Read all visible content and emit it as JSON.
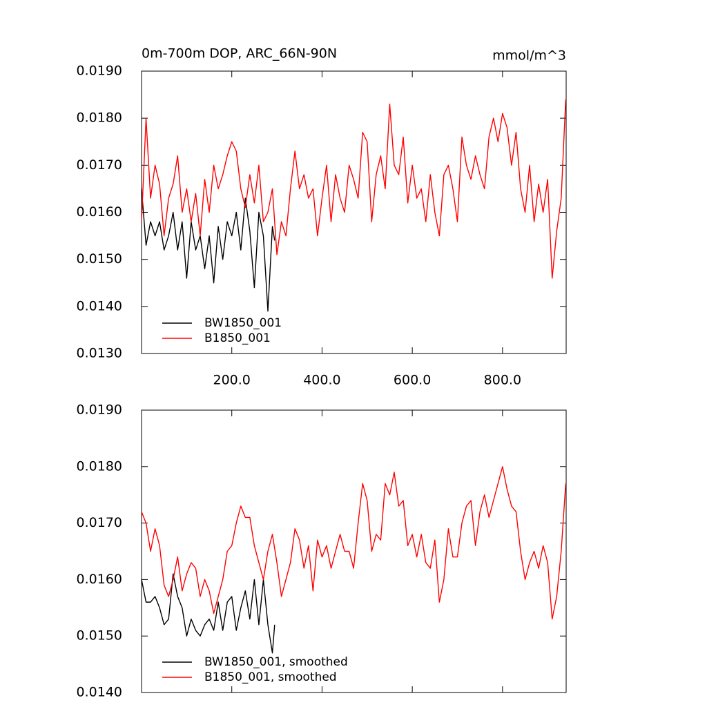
{
  "chart_data": [
    {
      "type": "line",
      "title": "0m-700m DOP, ARC_66N-90N",
      "units": "mmol/m^3",
      "xlim": [
        0,
        941
      ],
      "xticks": [
        {
          "value": 200,
          "label": "200.0"
        },
        {
          "value": 400,
          "label": "400.0"
        },
        {
          "value": 600,
          "label": "600.0"
        },
        {
          "value": 800,
          "label": "800.0"
        }
      ],
      "ylim": [
        0.013,
        0.019
      ],
      "yticks": [
        {
          "value": 0.013,
          "label": "0.0130"
        },
        {
          "value": 0.014,
          "label": "0.0140"
        },
        {
          "value": 0.015,
          "label": "0.0150"
        },
        {
          "value": 0.016,
          "label": "0.0160"
        },
        {
          "value": 0.017,
          "label": "0.0170"
        },
        {
          "value": 0.018,
          "label": "0.0180"
        },
        {
          "value": 0.019,
          "label": "0.0190"
        }
      ],
      "legend": "lower left",
      "series": [
        {
          "name": "BW1850_001",
          "color": "#000000",
          "x": [
            0,
            10,
            20,
            30,
            40,
            50,
            60,
            70,
            80,
            90,
            100,
            110,
            120,
            130,
            140,
            150,
            160,
            170,
            180,
            190,
            200,
            210,
            220,
            230,
            240,
            250,
            260,
            270,
            280,
            290,
            295
          ],
          "values": [
            0.0165,
            0.0153,
            0.0158,
            0.0155,
            0.0158,
            0.0152,
            0.0155,
            0.016,
            0.0152,
            0.0158,
            0.0146,
            0.0158,
            0.0152,
            0.0155,
            0.0148,
            0.0155,
            0.0145,
            0.0157,
            0.015,
            0.0158,
            0.0155,
            0.016,
            0.0152,
            0.0163,
            0.0156,
            0.0144,
            0.016,
            0.0155,
            0.0139,
            0.0157,
            0.0154
          ]
        },
        {
          "name": "B1850_001",
          "color": "#ff0000",
          "x": [
            0,
            10,
            20,
            30,
            40,
            50,
            60,
            70,
            80,
            90,
            100,
            110,
            120,
            130,
            140,
            150,
            160,
            170,
            180,
            190,
            200,
            210,
            220,
            230,
            240,
            250,
            260,
            270,
            280,
            290,
            300,
            310,
            320,
            330,
            340,
            350,
            360,
            370,
            380,
            390,
            400,
            410,
            420,
            430,
            440,
            450,
            460,
            470,
            480,
            490,
            500,
            510,
            520,
            530,
            540,
            550,
            560,
            570,
            580,
            590,
            600,
            610,
            620,
            630,
            640,
            650,
            660,
            670,
            680,
            690,
            700,
            710,
            720,
            730,
            740,
            750,
            760,
            770,
            780,
            790,
            800,
            810,
            820,
            830,
            840,
            850,
            860,
            870,
            880,
            890,
            900,
            910,
            920,
            930,
            940
          ],
          "values": [
            0.0158,
            0.018,
            0.0163,
            0.017,
            0.0166,
            0.0155,
            0.0163,
            0.0166,
            0.0172,
            0.016,
            0.0165,
            0.0158,
            0.0164,
            0.0155,
            0.0167,
            0.016,
            0.017,
            0.0165,
            0.0168,
            0.0172,
            0.0175,
            0.0173,
            0.0165,
            0.0161,
            0.0168,
            0.0162,
            0.017,
            0.0158,
            0.016,
            0.0165,
            0.0151,
            0.0158,
            0.0155,
            0.0165,
            0.0173,
            0.0165,
            0.0168,
            0.0163,
            0.0165,
            0.0155,
            0.0163,
            0.017,
            0.0158,
            0.0168,
            0.0163,
            0.016,
            0.017,
            0.0167,
            0.0163,
            0.0177,
            0.0175,
            0.0158,
            0.0168,
            0.0172,
            0.0165,
            0.0183,
            0.017,
            0.0168,
            0.0176,
            0.0162,
            0.017,
            0.0163,
            0.0165,
            0.0158,
            0.0168,
            0.016,
            0.0155,
            0.0168,
            0.017,
            0.0165,
            0.0158,
            0.0176,
            0.017,
            0.0167,
            0.0172,
            0.0168,
            0.0165,
            0.0176,
            0.018,
            0.0175,
            0.0181,
            0.0178,
            0.017,
            0.0177,
            0.0165,
            0.016,
            0.017,
            0.0158,
            0.0166,
            0.016,
            0.0167,
            0.0146,
            0.0156,
            0.0163,
            0.0184
          ]
        }
      ]
    },
    {
      "type": "line",
      "xlim": [
        0,
        941
      ],
      "xticks": [
        200,
        400,
        600,
        800
      ],
      "ylim": [
        0.014,
        0.019
      ],
      "yticks": [
        {
          "value": 0.014,
          "label": "0.0140"
        },
        {
          "value": 0.015,
          "label": "0.0150"
        },
        {
          "value": 0.016,
          "label": "0.0160"
        },
        {
          "value": 0.017,
          "label": "0.0170"
        },
        {
          "value": 0.018,
          "label": "0.0180"
        },
        {
          "value": 0.019,
          "label": "0.0190"
        }
      ],
      "legend": "lower left",
      "series": [
        {
          "name": "BW1850_001, smoothed",
          "color": "#000000",
          "x": [
            0,
            10,
            20,
            30,
            40,
            50,
            60,
            70,
            80,
            90,
            100,
            110,
            120,
            130,
            140,
            150,
            160,
            170,
            180,
            190,
            200,
            210,
            220,
            230,
            240,
            250,
            260,
            270,
            280,
            290,
            295
          ],
          "values": [
            0.016,
            0.0156,
            0.0156,
            0.0157,
            0.0155,
            0.0152,
            0.0153,
            0.0161,
            0.0157,
            0.0155,
            0.015,
            0.0153,
            0.0151,
            0.015,
            0.0152,
            0.0153,
            0.0151,
            0.0156,
            0.0151,
            0.0156,
            0.0157,
            0.0151,
            0.0155,
            0.0158,
            0.0153,
            0.016,
            0.0152,
            0.016,
            0.0152,
            0.0147,
            0.0152
          ]
        },
        {
          "name": "B1850_001, smoothed",
          "color": "#ff0000",
          "x": [
            0,
            10,
            20,
            30,
            40,
            50,
            60,
            70,
            80,
            90,
            100,
            110,
            120,
            130,
            140,
            150,
            160,
            170,
            180,
            190,
            200,
            210,
            220,
            230,
            240,
            250,
            260,
            270,
            280,
            290,
            300,
            310,
            320,
            330,
            340,
            350,
            360,
            370,
            380,
            390,
            400,
            410,
            420,
            430,
            440,
            450,
            460,
            470,
            480,
            490,
            500,
            510,
            520,
            530,
            540,
            550,
            560,
            570,
            580,
            590,
            600,
            610,
            620,
            630,
            640,
            650,
            660,
            670,
            680,
            690,
            700,
            710,
            720,
            730,
            740,
            750,
            760,
            770,
            780,
            790,
            800,
            810,
            820,
            830,
            840,
            850,
            860,
            870,
            880,
            890,
            900,
            910,
            920,
            930,
            940
          ],
          "values": [
            0.0172,
            0.017,
            0.0165,
            0.0169,
            0.0166,
            0.0159,
            0.0157,
            0.016,
            0.0164,
            0.0158,
            0.0161,
            0.0163,
            0.0162,
            0.0157,
            0.016,
            0.0158,
            0.0154,
            0.0157,
            0.016,
            0.0165,
            0.0166,
            0.017,
            0.0173,
            0.0171,
            0.0171,
            0.0166,
            0.0163,
            0.016,
            0.0165,
            0.0168,
            0.0163,
            0.0157,
            0.016,
            0.0163,
            0.0169,
            0.0167,
            0.0162,
            0.0166,
            0.0158,
            0.0167,
            0.0164,
            0.0166,
            0.0162,
            0.0165,
            0.0168,
            0.0165,
            0.0165,
            0.0162,
            0.017,
            0.0177,
            0.0174,
            0.0165,
            0.0168,
            0.0167,
            0.0177,
            0.0175,
            0.0179,
            0.0173,
            0.0174,
            0.0166,
            0.0168,
            0.0164,
            0.0168,
            0.0163,
            0.0162,
            0.0167,
            0.0156,
            0.016,
            0.0169,
            0.0164,
            0.0164,
            0.017,
            0.0173,
            0.0174,
            0.0166,
            0.0172,
            0.0175,
            0.0171,
            0.0174,
            0.0177,
            0.018,
            0.0176,
            0.0173,
            0.0172,
            0.0165,
            0.016,
            0.0163,
            0.0165,
            0.0162,
            0.0166,
            0.0163,
            0.0153,
            0.0157,
            0.0165,
            0.0177
          ]
        }
      ]
    }
  ]
}
